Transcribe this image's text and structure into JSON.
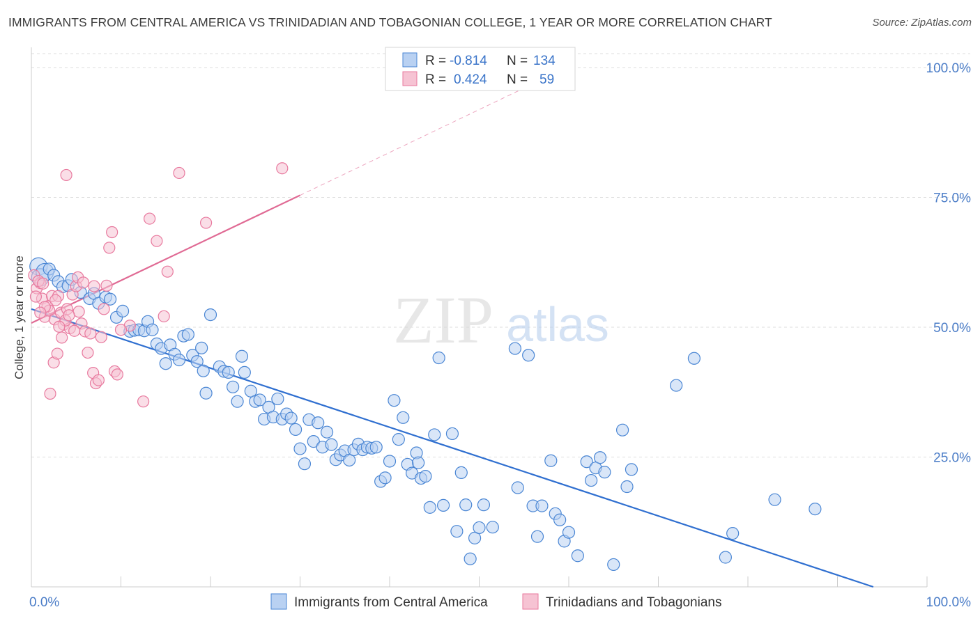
{
  "title": "IMMIGRANTS FROM CENTRAL AMERICA VS TRINIDADIAN AND TOBAGONIAN COLLEGE, 1 YEAR OR MORE CORRELATION CHART",
  "source": "Source: ZipAtlas.com",
  "watermark": {
    "zip": "ZIP",
    "atlas": "atlas"
  },
  "legend_box": {
    "rows": [
      {
        "r_label": "R =",
        "r_value": "-0.814",
        "n_label": "N =",
        "n_value": "134"
      },
      {
        "r_label": "R =",
        "r_value": "0.424",
        "n_label": "N =",
        "n_value": "59"
      }
    ]
  },
  "colors": {
    "blue": "#4a86d4",
    "blue_fill": "#b9d1f2",
    "blue_line": "#2f6fd0",
    "pink": "#e8799e",
    "pink_fill": "#f6c3d3",
    "pink_line": "#e06a94",
    "tick_label": "#4a7cc7",
    "grid": "#dcdcdc"
  },
  "chart_data": {
    "type": "scatter",
    "xlabel": "",
    "ylabel": "College, 1 year or more",
    "xlim": [
      0,
      100
    ],
    "ylim": [
      0,
      100
    ],
    "x_tick_labels": [
      {
        "value": 0,
        "label": "0.0%"
      },
      {
        "value": 100,
        "label": "100.0%"
      }
    ],
    "y_tick_labels": [
      {
        "value": 25,
        "label": "25.0%"
      },
      {
        "value": 50,
        "label": "50.0%"
      },
      {
        "value": 75,
        "label": "75.0%"
      },
      {
        "value": 100,
        "label": "100.0%"
      }
    ],
    "grid": true,
    "legend_position": "bottom-center",
    "series": [
      {
        "name": "Immigrants from Central America",
        "color": "#4a86d4",
        "trend": {
          "x": [
            0,
            94
          ],
          "y": [
            53.5,
            0
          ]
        },
        "points": [
          [
            0.8,
            61.7
          ],
          [
            1,
            59.6
          ],
          [
            1.5,
            60.6
          ],
          [
            2,
            61.2
          ],
          [
            2.5,
            60
          ],
          [
            3,
            58.8
          ],
          [
            3.5,
            57.8
          ],
          [
            4.1,
            58
          ],
          [
            4.5,
            59.2
          ],
          [
            5.5,
            56.7
          ],
          [
            6.5,
            55.5
          ],
          [
            7,
            56.5
          ],
          [
            7.5,
            54.6
          ],
          [
            8.3,
            55.8
          ],
          [
            8.8,
            55.4
          ],
          [
            9.5,
            51.9
          ],
          [
            10.2,
            53.1
          ],
          [
            11,
            49.2
          ],
          [
            11.5,
            49.4
          ],
          [
            12,
            49.5
          ],
          [
            12.6,
            49.3
          ],
          [
            13,
            51.1
          ],
          [
            13.5,
            49.5
          ],
          [
            14,
            46.8
          ],
          [
            14.5,
            45.9
          ],
          [
            15,
            43
          ],
          [
            15.5,
            46.6
          ],
          [
            16,
            44.8
          ],
          [
            16.5,
            43.7
          ],
          [
            17,
            48.3
          ],
          [
            17.5,
            48.6
          ],
          [
            18,
            44.6
          ],
          [
            18.5,
            43.4
          ],
          [
            19,
            46
          ],
          [
            19.2,
            41.6
          ],
          [
            19.5,
            37.3
          ],
          [
            20,
            52.4
          ],
          [
            21,
            42.4
          ],
          [
            21.5,
            41.5
          ],
          [
            22,
            41.3
          ],
          [
            22.5,
            38.5
          ],
          [
            23,
            35.7
          ],
          [
            23.5,
            44.4
          ],
          [
            23.8,
            41.3
          ],
          [
            24.5,
            37.7
          ],
          [
            25,
            35.7
          ],
          [
            25.5,
            36
          ],
          [
            26,
            32.3
          ],
          [
            26.5,
            34.6
          ],
          [
            27,
            32.7
          ],
          [
            27.5,
            36.2
          ],
          [
            28,
            32.3
          ],
          [
            28.5,
            33.3
          ],
          [
            29,
            32.5
          ],
          [
            29.5,
            30.3
          ],
          [
            30,
            26.6
          ],
          [
            30.5,
            23.7
          ],
          [
            31,
            32.2
          ],
          [
            31.5,
            28
          ],
          [
            32,
            31.6
          ],
          [
            32.5,
            26.9
          ],
          [
            33,
            29.8
          ],
          [
            33.5,
            27.4
          ],
          [
            34,
            24.5
          ],
          [
            34.5,
            25.4
          ],
          [
            35,
            26.2
          ],
          [
            35.5,
            24.4
          ],
          [
            36,
            26.4
          ],
          [
            36.5,
            27.5
          ],
          [
            37,
            26.4
          ],
          [
            37.5,
            26.9
          ],
          [
            38,
            26.7
          ],
          [
            38.5,
            26.9
          ],
          [
            39,
            20.3
          ],
          [
            39.5,
            21
          ],
          [
            40,
            24.2
          ],
          [
            40.5,
            35.9
          ],
          [
            41,
            28.4
          ],
          [
            41.5,
            32.6
          ],
          [
            42,
            23.6
          ],
          [
            42.5,
            21.9
          ],
          [
            43,
            25.8
          ],
          [
            43.2,
            23.9
          ],
          [
            43.5,
            20.9
          ],
          [
            44,
            21.3
          ],
          [
            44.5,
            15.3
          ],
          [
            45,
            29.3
          ],
          [
            45.5,
            44.1
          ],
          [
            46,
            15.7
          ],
          [
            47,
            29.5
          ],
          [
            47.5,
            10.7
          ],
          [
            48,
            22
          ],
          [
            48.5,
            15.8
          ],
          [
            49,
            5.4
          ],
          [
            49.5,
            9.4
          ],
          [
            50,
            11.4
          ],
          [
            50.5,
            15.8
          ],
          [
            51.5,
            11.5
          ],
          [
            54,
            45.9
          ],
          [
            54.3,
            19.1
          ],
          [
            55.5,
            44.6
          ],
          [
            56,
            15.6
          ],
          [
            56.5,
            9.7
          ],
          [
            57,
            15.6
          ],
          [
            58,
            24.3
          ],
          [
            58.5,
            14.1
          ],
          [
            59,
            12.9
          ],
          [
            59.5,
            8.8
          ],
          [
            60,
            10.5
          ],
          [
            61,
            6
          ],
          [
            62,
            24.1
          ],
          [
            62.5,
            20.5
          ],
          [
            63,
            22.9
          ],
          [
            63.5,
            24.9
          ],
          [
            64,
            22.1
          ],
          [
            65,
            4.3
          ],
          [
            66,
            30.2
          ],
          [
            66.5,
            19.3
          ],
          [
            67,
            22.6
          ],
          [
            72,
            38.8
          ],
          [
            74,
            44
          ],
          [
            77.5,
            5.7
          ],
          [
            78.3,
            10.3
          ],
          [
            83,
            16.8
          ],
          [
            87.5,
            15
          ]
        ]
      },
      {
        "name": "Trinidadians and Tobagonians",
        "color": "#e8799e",
        "trend": {
          "x": [
            0,
            30
          ],
          "y": [
            50.8,
            75.4
          ]
        },
        "trend_dashed": {
          "x": [
            30,
            58
          ],
          "y": [
            75.4,
            98.5
          ]
        },
        "points": [
          [
            0.3,
            60
          ],
          [
            0.6,
            57.5
          ],
          [
            1,
            58.5
          ],
          [
            1.2,
            55.5
          ],
          [
            1.5,
            52
          ],
          [
            1.8,
            54
          ],
          [
            2,
            53.2
          ],
          [
            2.3,
            56
          ],
          [
            2.6,
            51.5
          ],
          [
            3,
            56
          ],
          [
            3.3,
            52.8
          ],
          [
            3.6,
            50.5
          ],
          [
            4,
            53.5
          ],
          [
            4.3,
            49.8
          ],
          [
            4.6,
            56.3
          ],
          [
            5,
            57.9
          ],
          [
            5.3,
            53
          ],
          [
            5.6,
            50.7
          ],
          [
            6,
            49.2
          ],
          [
            6.3,
            45.1
          ],
          [
            6.6,
            48.8
          ],
          [
            6.9,
            41.2
          ],
          [
            7.2,
            39.2
          ],
          [
            7.5,
            39.8
          ],
          [
            7.8,
            48.1
          ],
          [
            8.1,
            53.5
          ],
          [
            8.4,
            58
          ],
          [
            8.7,
            65.3
          ],
          [
            9,
            68.3
          ],
          [
            9.3,
            41.5
          ],
          [
            9.6,
            40.9
          ],
          [
            1.5,
            53.9
          ],
          [
            2.1,
            37.2
          ],
          [
            2.5,
            43.2
          ],
          [
            2.9,
            44.9
          ],
          [
            3.4,
            48
          ],
          [
            3.8,
            51.3
          ],
          [
            4.2,
            52.3
          ],
          [
            4.8,
            49.3
          ],
          [
            5.2,
            59.6
          ],
          [
            5.8,
            58.6
          ],
          [
            7,
            57.9
          ],
          [
            0.8,
            58.9
          ],
          [
            1.3,
            58.4
          ],
          [
            2.7,
            55.2
          ],
          [
            3.1,
            50.1
          ],
          [
            3.9,
            79.3
          ],
          [
            12.5,
            35.7
          ],
          [
            13.2,
            70.9
          ],
          [
            14,
            66.6
          ],
          [
            14.8,
            52.1
          ],
          [
            15.2,
            60.7
          ],
          [
            16.5,
            79.7
          ],
          [
            19.5,
            70.1
          ],
          [
            28,
            80.6
          ],
          [
            11,
            50.3
          ],
          [
            10,
            49.5
          ],
          [
            1,
            52.8
          ],
          [
            0.5,
            55.9
          ]
        ]
      }
    ]
  }
}
